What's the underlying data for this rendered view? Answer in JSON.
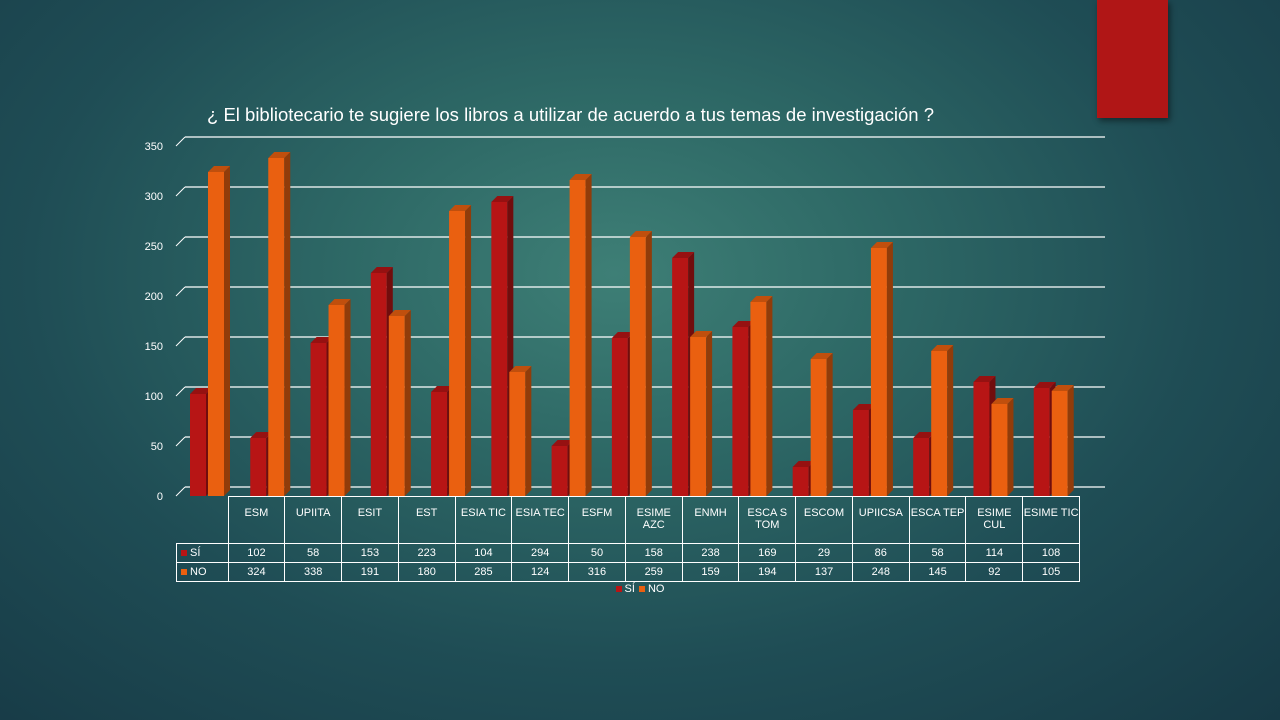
{
  "chart_data": {
    "type": "bar",
    "title": "¿ El bibliotecario te sugiere los libros a utilizar de acuerdo a tus temas de investigación ?",
    "categories": [
      "ESM",
      "UPIITA",
      "ESIT",
      "EST",
      "ESIA TIC",
      "ESIA TEC",
      "ESFM",
      "ESIME AZC",
      "ENMH",
      "ESCA S TOM",
      "ESCOM",
      "UPIICSA",
      "ESCA TEP",
      "ESIME CUL",
      "ESIME TIC"
    ],
    "series": [
      {
        "name": "SÍ",
        "color": "#b71515",
        "values": [
          102,
          58,
          153,
          223,
          104,
          294,
          50,
          158,
          238,
          169,
          29,
          86,
          58,
          114,
          108
        ]
      },
      {
        "name": "NO",
        "color": "#ea6010",
        "values": [
          324,
          338,
          191,
          180,
          285,
          124,
          316,
          259,
          159,
          194,
          137,
          248,
          145,
          92,
          105
        ]
      }
    ],
    "ylim": [
      0,
      350
    ],
    "yticks": [
      0,
      50,
      100,
      150,
      200,
      250,
      300,
      350
    ],
    "grid": true,
    "legend_position": "bottom",
    "data_table": true
  }
}
